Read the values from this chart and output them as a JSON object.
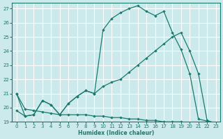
{
  "xlabel": "Humidex (Indice chaleur)",
  "bg_color": "#cce9ec",
  "grid_color": "#ffffff",
  "line_color": "#1a7a6e",
  "xlim": [
    -0.5,
    23.5
  ],
  "ylim": [
    19.0,
    27.4
  ],
  "yticks": [
    19,
    20,
    21,
    22,
    23,
    24,
    25,
    26,
    27
  ],
  "xticks": [
    0,
    1,
    2,
    3,
    4,
    5,
    6,
    7,
    8,
    9,
    10,
    11,
    12,
    13,
    14,
    15,
    16,
    17,
    18,
    19,
    20,
    21,
    22,
    23
  ],
  "curve1_x": [
    0,
    1,
    2,
    3,
    4,
    5,
    6,
    7,
    8,
    9,
    10,
    11,
    12,
    13,
    14,
    15,
    16,
    17,
    18,
    19,
    20,
    21,
    22,
    23
  ],
  "curve1_y": [
    21.0,
    19.4,
    19.5,
    20.5,
    20.2,
    19.5,
    20.3,
    20.8,
    21.2,
    21.0,
    25.5,
    26.3,
    26.7,
    27.0,
    27.2,
    26.8,
    26.5,
    26.8,
    25.3,
    24.1,
    22.4,
    19.2,
    19.05,
    18.9
  ],
  "curve2_x": [
    0,
    1,
    2,
    3,
    4,
    5,
    6,
    7,
    8,
    9,
    10,
    11,
    12,
    13,
    14,
    15,
    16,
    17,
    18,
    19,
    20,
    21,
    22,
    23
  ],
  "curve2_y": [
    19.8,
    19.4,
    19.5,
    20.5,
    20.2,
    19.5,
    20.3,
    20.8,
    21.2,
    21.0,
    21.5,
    21.8,
    22.0,
    22.5,
    23.0,
    23.5,
    24.0,
    24.5,
    25.0,
    25.3,
    24.0,
    22.4,
    19.1,
    18.9
  ],
  "curve3_x": [
    0,
    1,
    2,
    3,
    4,
    5,
    6,
    7,
    8,
    9,
    10,
    11,
    12,
    13,
    14,
    15,
    16,
    17,
    18,
    19,
    20,
    21,
    22,
    23
  ],
  "curve3_y": [
    21.0,
    19.9,
    19.8,
    19.7,
    19.6,
    19.5,
    19.5,
    19.5,
    19.5,
    19.4,
    19.4,
    19.3,
    19.3,
    19.2,
    19.2,
    19.1,
    19.1,
    19.0,
    19.0,
    19.0,
    18.9,
    18.9,
    18.9,
    18.9
  ]
}
